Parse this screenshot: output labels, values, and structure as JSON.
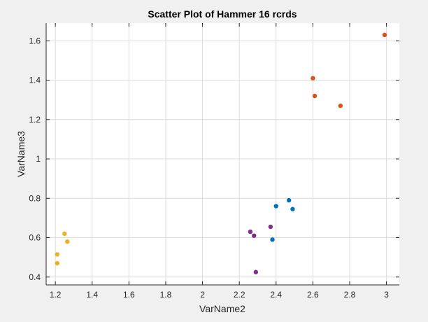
{
  "chart_data": {
    "type": "scatter",
    "title": "Scatter Plot of Hammer 16 rcrds",
    "xlabel": "VarName2",
    "ylabel": "VarName3",
    "xlim": [
      1.15,
      3.07
    ],
    "ylim": [
      0.36,
      1.69
    ],
    "xticks": [
      1.2,
      1.4,
      1.6,
      1.8,
      2,
      2.2,
      2.4,
      2.6,
      2.8,
      3
    ],
    "xtick_labels": [
      "1.2",
      "1.4",
      "1.6",
      "1.8",
      "2",
      "2.2",
      "2.4",
      "2.6",
      "2.8",
      "3"
    ],
    "yticks": [
      0.4,
      0.6,
      0.8,
      1,
      1.2,
      1.4,
      1.6
    ],
    "ytick_labels": [
      "0.4",
      "0.6",
      "0.8",
      "1",
      "1.2",
      "1.4",
      "1.6"
    ],
    "grid": true,
    "background": "#ffffff",
    "figure_background": "#f0f0f0",
    "series": [
      {
        "color": "#D95319",
        "points": [
          {
            "x": 2.6,
            "y": 1.41
          },
          {
            "x": 2.61,
            "y": 1.32
          },
          {
            "x": 2.75,
            "y": 1.27
          },
          {
            "x": 2.99,
            "y": 1.63
          }
        ]
      },
      {
        "color": "#0072BD",
        "points": [
          {
            "x": 2.38,
            "y": 0.59
          },
          {
            "x": 2.4,
            "y": 0.76
          },
          {
            "x": 2.47,
            "y": 0.79
          },
          {
            "x": 2.49,
            "y": 0.745
          }
        ]
      },
      {
        "color": "#7E2F8E",
        "points": [
          {
            "x": 2.26,
            "y": 0.63
          },
          {
            "x": 2.28,
            "y": 0.61
          },
          {
            "x": 2.37,
            "y": 0.655
          },
          {
            "x": 2.29,
            "y": 0.425
          }
        ]
      },
      {
        "color": "#EDB120",
        "points": [
          {
            "x": 1.21,
            "y": 0.515
          },
          {
            "x": 1.21,
            "y": 0.47
          },
          {
            "x": 1.25,
            "y": 0.62
          },
          {
            "x": 1.265,
            "y": 0.58
          }
        ]
      }
    ]
  }
}
